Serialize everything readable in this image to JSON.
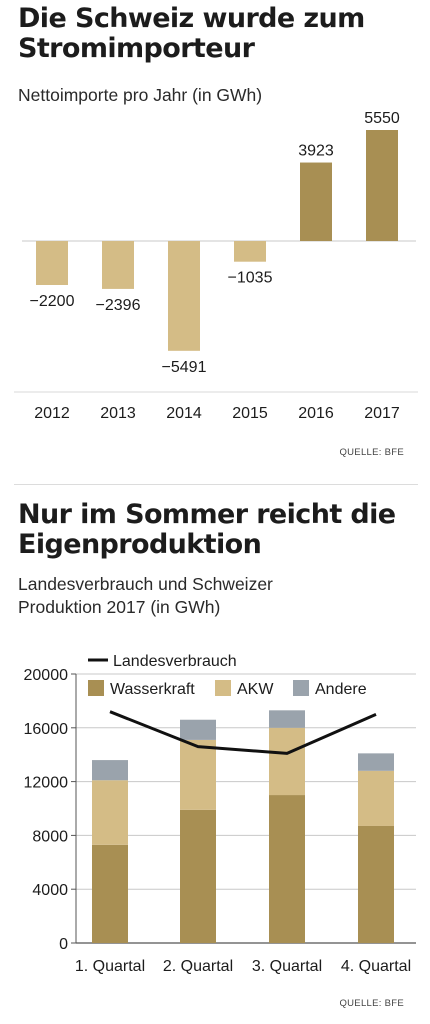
{
  "chart_data": [
    {
      "type": "bar",
      "title": "Die Schweiz wurde zum Stromimporteur",
      "subtitle": "Nettoimporte pro Jahr (in GWh)",
      "categories": [
        "2012",
        "2013",
        "2014",
        "2015",
        "2016",
        "2017"
      ],
      "values": [
        -2200,
        -2396,
        -5491,
        -1035,
        3923,
        5550
      ],
      "labels": [
        "−2200",
        "−2396",
        "−5491",
        "−1035",
        "3923",
        "5550"
      ],
      "ylim": [
        -6000,
        6000
      ],
      "grid": false,
      "bar_color": "#a88f53",
      "negative_bar_color": "#d4bc86",
      "source": "QUELLE: BFE"
    },
    {
      "type": "bar",
      "stacked": true,
      "title": "Nur im Sommer reicht die Eigenproduktion",
      "subtitle_lines": [
        "Landesverbrauch und  Schweizer",
        "Produktion 2017 (in GWh)"
      ],
      "categories": [
        "1. Quartal",
        "2. Quartal",
        "3. Quartal",
        "4. Quartal"
      ],
      "series": [
        {
          "name": "Wasserkraft",
          "type": "bar",
          "color": "#a88f53",
          "values": [
            7300,
            9900,
            11000,
            8700
          ]
        },
        {
          "name": "AKW",
          "type": "bar",
          "color": "#d4bc86",
          "values": [
            4800,
            5200,
            5000,
            4100
          ]
        },
        {
          "name": "Andere",
          "type": "bar",
          "color": "#9aa3ac",
          "values": [
            1500,
            1500,
            1300,
            1300
          ]
        },
        {
          "name": "Landesverbrauch",
          "type": "line",
          "color": "#111111",
          "values": [
            17200,
            14600,
            14100,
            17000
          ]
        }
      ],
      "yticks": [
        "20000",
        "16000",
        "12000",
        "8000",
        "4000",
        "0"
      ],
      "ylim": [
        0,
        20000
      ],
      "grid": true,
      "legend": "top",
      "source": "QUELLE: BFE"
    }
  ]
}
